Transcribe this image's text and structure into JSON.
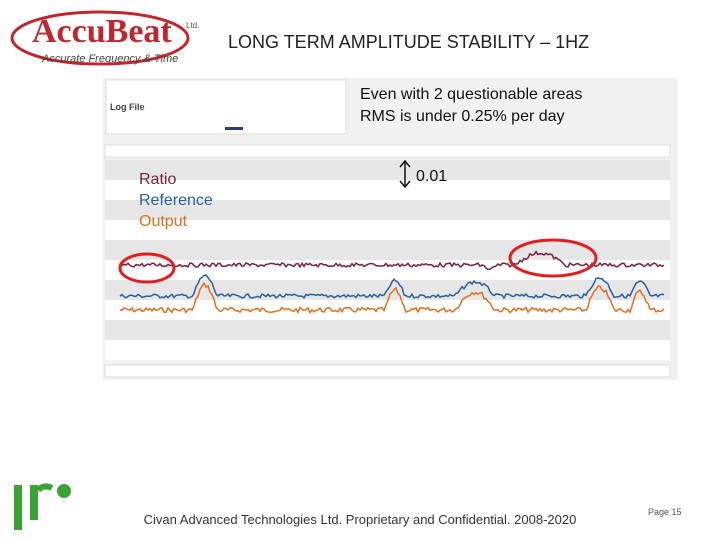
{
  "header": {
    "logo_name": "AccuBeat",
    "logo_suffix": "Ltd.",
    "logo_tagline": "Accurate Frequency & Time",
    "title": "LONG TERM AMPLITUDE STABILITY – 1HZ"
  },
  "annotation": {
    "line1": "Even with 2 questionable areas",
    "line2": "RMS is under 0.25% per day",
    "scale": "0.01"
  },
  "legend": {
    "items": [
      "Ratio",
      "Reference",
      "Output"
    ]
  },
  "screenshot": {
    "panel_title": "Log File"
  },
  "footer": {
    "text": "Civan Advanced Technologies Ltd. Proprietary and Confidential. 2008-2020",
    "page": "Page 15"
  }
}
